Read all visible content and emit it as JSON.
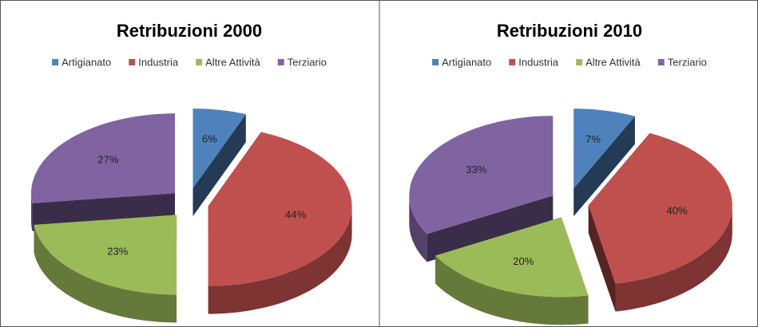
{
  "chart_data": [
    {
      "type": "pie",
      "title": "Retribuzioni 2000",
      "categories": [
        "Artigianato",
        "Industria",
        "Altre Attività",
        "Terziario"
      ],
      "values": [
        6,
        44,
        23,
        27
      ],
      "value_labels": [
        "6%",
        "44%",
        "23%",
        "27%"
      ],
      "colors": [
        "#4f81bd",
        "#c0504d",
        "#9bbb59",
        "#8064a2"
      ],
      "legend": "top"
    },
    {
      "type": "pie",
      "title": "Retribuzioni 2010",
      "categories": [
        "Artigianato",
        "Industria",
        "Altre Attività",
        "Terziario"
      ],
      "values": [
        7,
        40,
        20,
        33
      ],
      "value_labels": [
        "7%",
        "40%",
        "20%",
        "33%"
      ],
      "colors": [
        "#4f81bd",
        "#c0504d",
        "#9bbb59",
        "#8064a2"
      ],
      "legend": "top"
    }
  ]
}
